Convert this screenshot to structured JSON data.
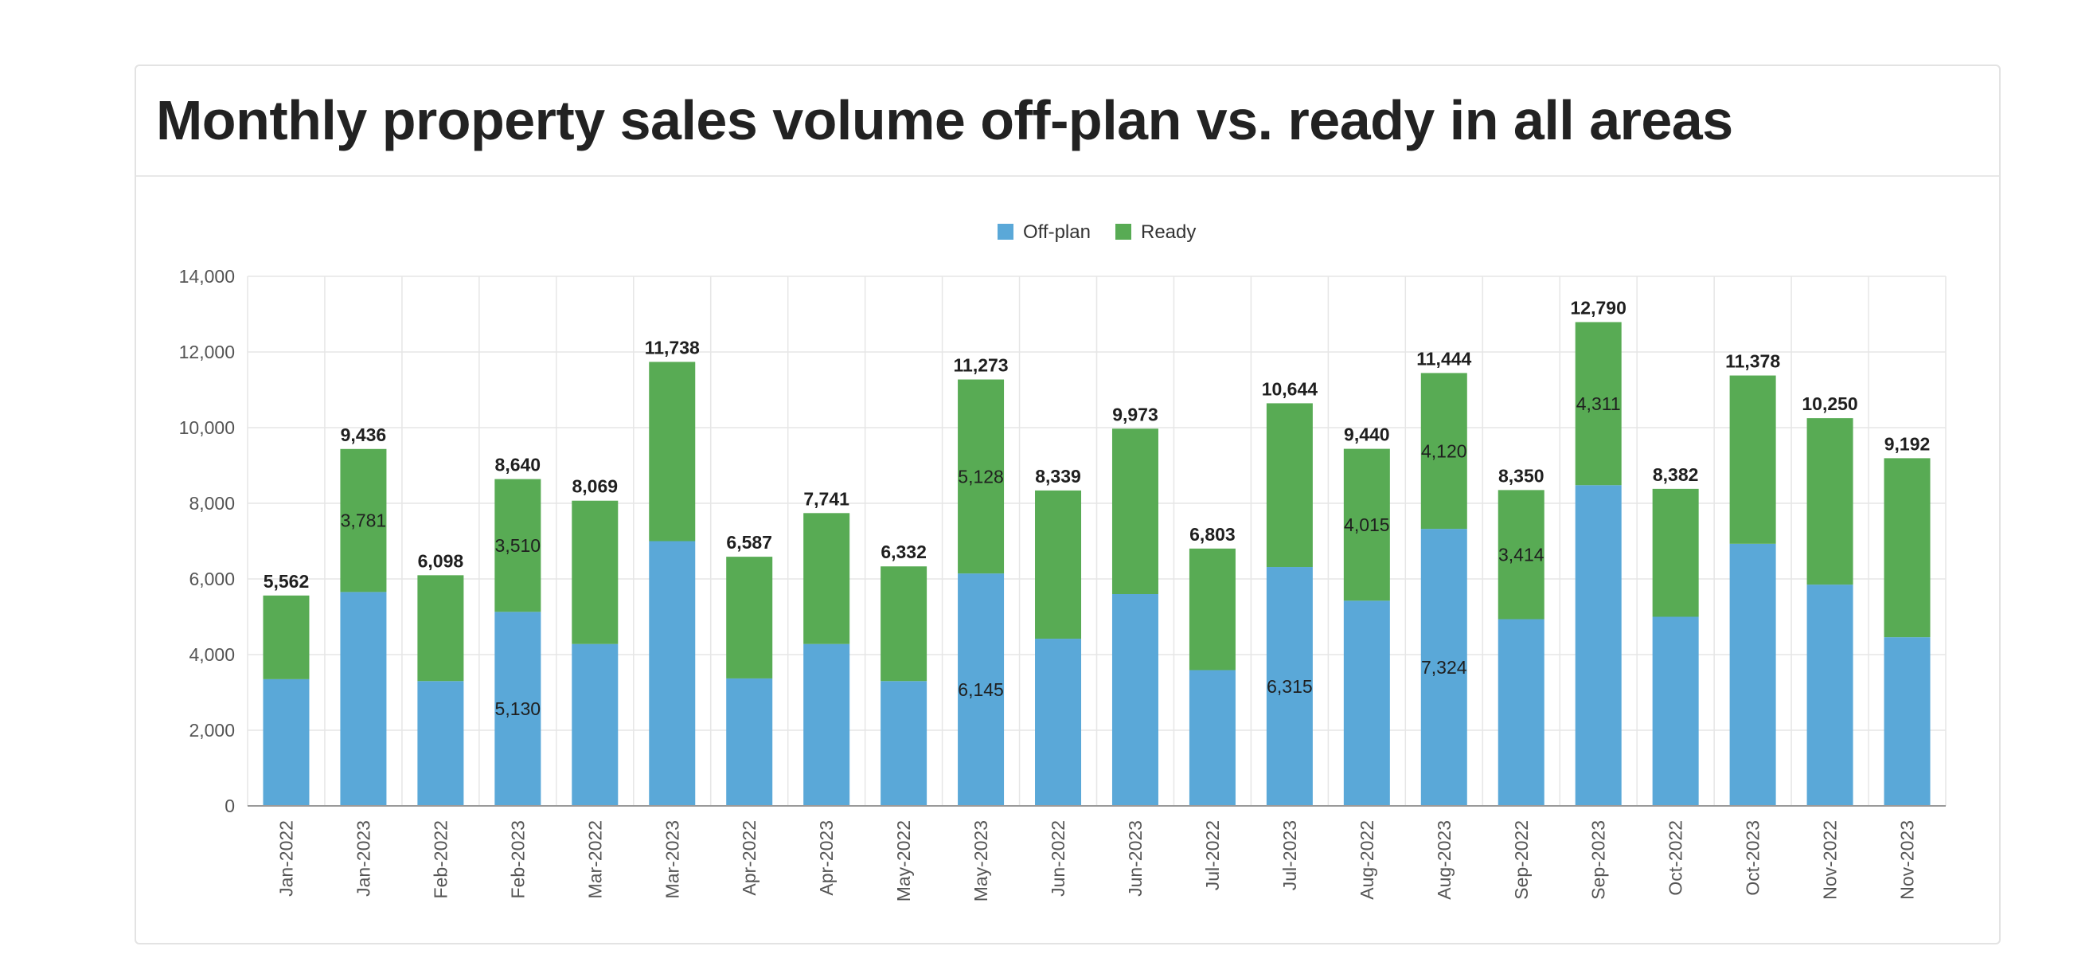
{
  "chart_data": {
    "type": "bar",
    "stacked": true,
    "title": "Monthly property sales volume off-plan vs. ready in all areas",
    "categories": [
      "Jan-2022",
      "Jan-2023",
      "Feb-2022",
      "Feb-2023",
      "Mar-2022",
      "Mar-2023",
      "Apr-2022",
      "Apr-2023",
      "May-2022",
      "May-2023",
      "Jun-2022",
      "Jun-2023",
      "Jul-2022",
      "Jul-2023",
      "Aug-2022",
      "Aug-2023",
      "Sep-2022",
      "Sep-2023",
      "Oct-2022",
      "Oct-2023",
      "Nov-2022",
      "Nov-2023"
    ],
    "series": [
      {
        "name": "Off-plan",
        "color": "#5aa8d8",
        "values": [
          3350,
          5655,
          3300,
          5130,
          4280,
          7000,
          3370,
          4280,
          3300,
          6145,
          4420,
          5600,
          3590,
          6315,
          5425,
          7324,
          4936,
          8479,
          5000,
          6930,
          5850,
          4460
        ]
      },
      {
        "name": "Ready",
        "color": "#58ab54",
        "values": [
          2212,
          3781,
          2798,
          3510,
          3789,
          4738,
          3217,
          3461,
          3032,
          5128,
          3919,
          4373,
          3213,
          4329,
          4015,
          4120,
          3414,
          4311,
          3382,
          4448,
          4400,
          4732
        ]
      }
    ],
    "totals": [
      "5,562",
      "9,436",
      "6,098",
      "8,640",
      "8,069",
      "11,738",
      "6,587",
      "7,741",
      "6,332",
      "11,273",
      "8,339",
      "9,973",
      "6,803",
      "10,644",
      "9,440",
      "11,444",
      "8,350",
      "12,790",
      "8,382",
      "11,378",
      "10,250",
      "9,192"
    ],
    "inner_labels": [
      {
        "index": 1,
        "series": 1,
        "text": "3,781"
      },
      {
        "index": 3,
        "series": 1,
        "text": "3,510"
      },
      {
        "index": 3,
        "series": 0,
        "text": "5,130"
      },
      {
        "index": 9,
        "series": 1,
        "text": "5,128"
      },
      {
        "index": 9,
        "series": 0,
        "text": "6,145"
      },
      {
        "index": 13,
        "series": 0,
        "text": "6,315"
      },
      {
        "index": 14,
        "series": 1,
        "text": "4,015"
      },
      {
        "index": 15,
        "series": 1,
        "text": "4,120"
      },
      {
        "index": 15,
        "series": 0,
        "text": "7,324"
      },
      {
        "index": 16,
        "series": 1,
        "text": "3,414"
      },
      {
        "index": 17,
        "series": 1,
        "text": "4,311"
      }
    ],
    "ylim": [
      0,
      14000
    ],
    "yticks": [
      "0",
      "2,000",
      "4,000",
      "6,000",
      "8,000",
      "10,000",
      "12,000",
      "14,000"
    ],
    "ytick_values": [
      0,
      2000,
      4000,
      6000,
      8000,
      10000,
      12000,
      14000
    ],
    "legend": [
      "Off-plan",
      "Ready"
    ],
    "legend_position": "top-center",
    "grid": true
  }
}
